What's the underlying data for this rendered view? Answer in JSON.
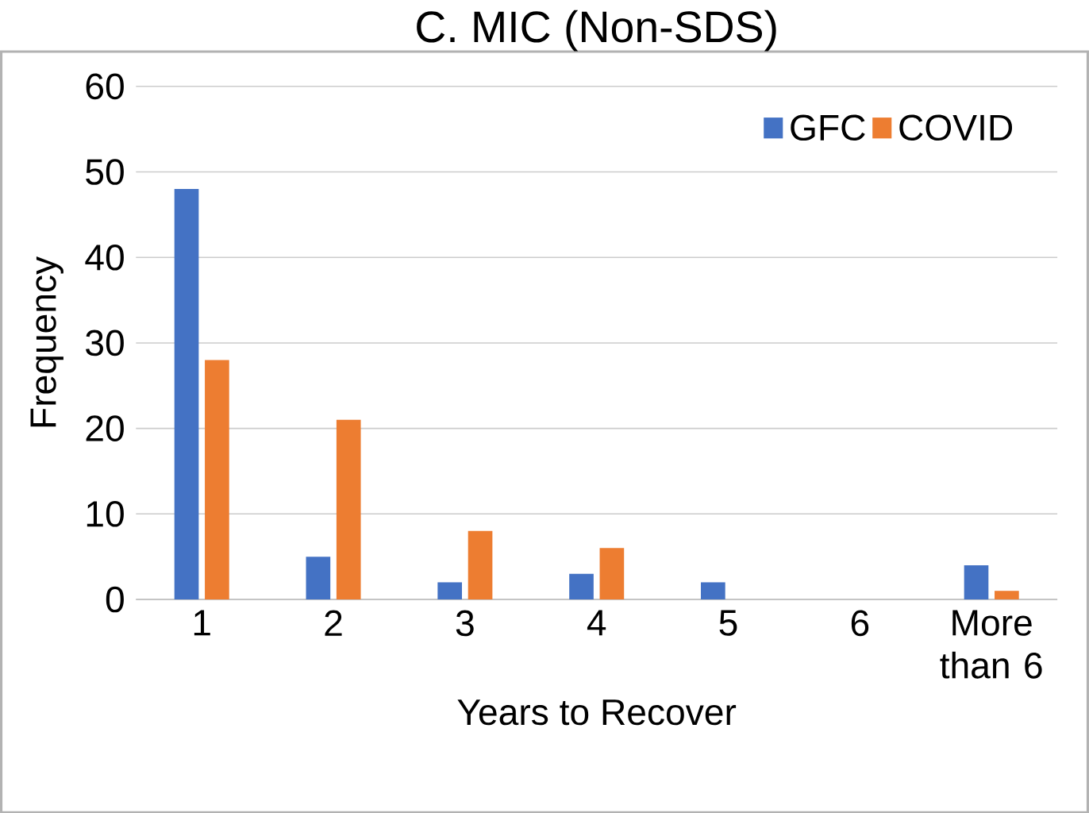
{
  "chart_data": {
    "type": "bar",
    "title": "C. MIC (Non-SDS)",
    "xlabel": "Years to Recover",
    "ylabel": "Frequency",
    "categories": [
      "1",
      "2",
      "3",
      "4",
      "5",
      "6",
      "More than 6"
    ],
    "series": [
      {
        "name": "GFC",
        "color": "#4472c4",
        "values": [
          48,
          5,
          2,
          3,
          2,
          0,
          4
        ]
      },
      {
        "name": "COVID",
        "color": "#ed7d31",
        "values": [
          28,
          21,
          8,
          6,
          0,
          0,
          1
        ]
      }
    ],
    "ylim": [
      0,
      60
    ],
    "yticks": [
      0,
      10,
      20,
      30,
      40,
      50,
      60
    ],
    "grid": "y",
    "legend": "top right"
  }
}
